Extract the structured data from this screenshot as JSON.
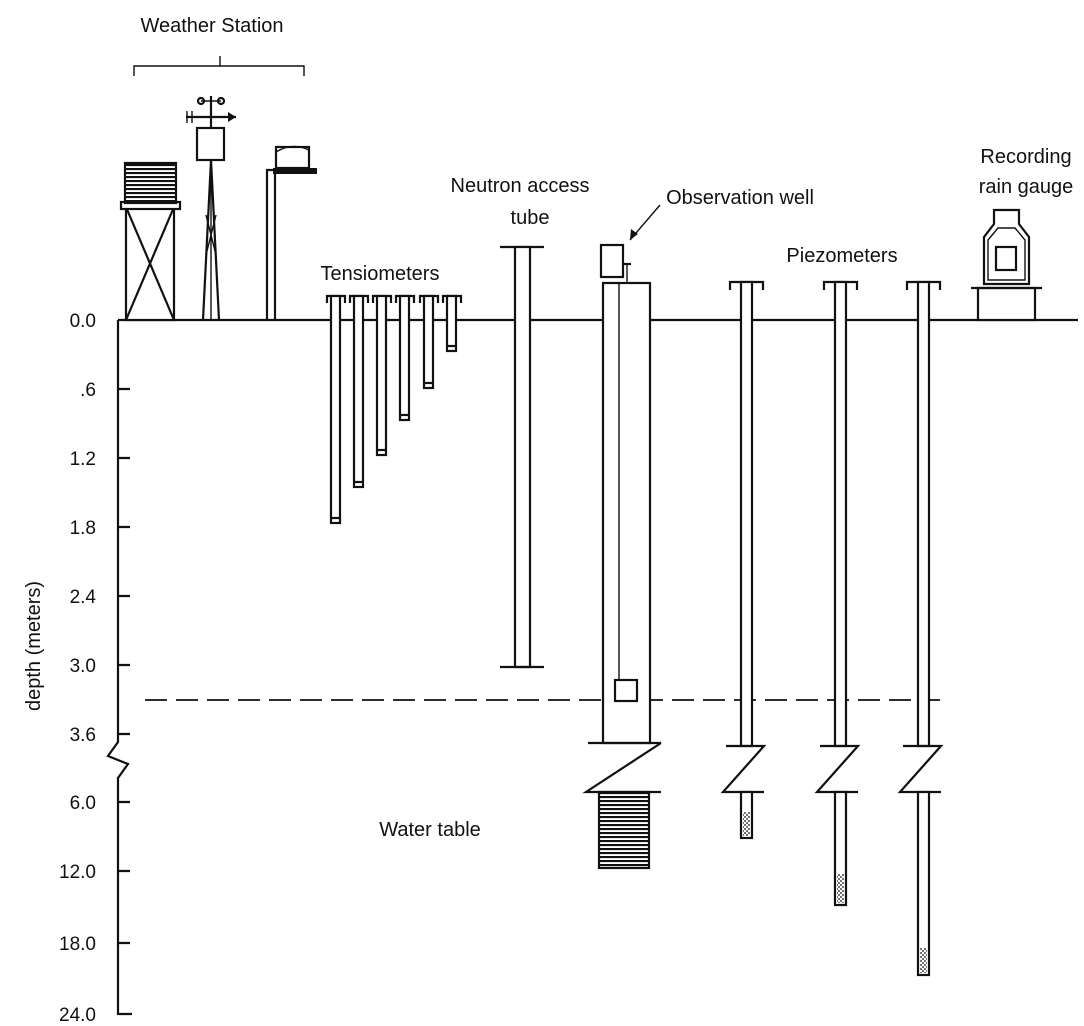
{
  "labels": {
    "weather_station": "Weather Station",
    "neutron_access_tube_line1": "Neutron access",
    "neutron_access_tube_line2": "tube",
    "observation_well": "Observation well",
    "recording_rain_gauge_line1": "Recording",
    "recording_rain_gauge_line2": "rain gauge",
    "tensiometers": "Tensiometers",
    "piezometers": "Piezometers",
    "water_table": "Water table"
  },
  "axis": {
    "label": "depth (meters)",
    "ticks": [
      "0.0",
      ".6",
      "1.2",
      "1.8",
      "2.4",
      "3.0",
      "3.6",
      "6.0",
      "12.0",
      "18.0",
      "24.0"
    ]
  },
  "colors": {
    "ink": "#111111",
    "background": "#ffffff"
  }
}
